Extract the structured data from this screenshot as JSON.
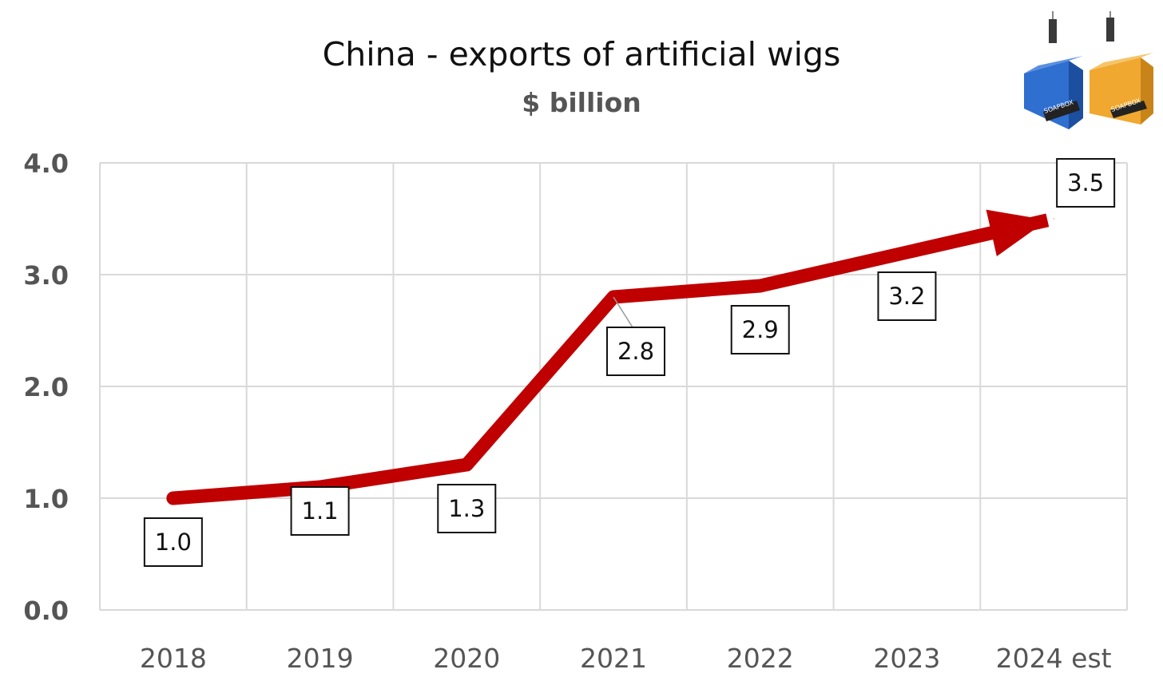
{
  "chart_data": {
    "type": "line",
    "title": "China - exports of artificial wigs",
    "subtitle": "$ billion",
    "categories": [
      "2018",
      "2019",
      "2020",
      "2021",
      "2022",
      "2023",
      "2024 est"
    ],
    "series": [
      {
        "values": [
          1.0,
          1.1,
          1.3,
          2.8,
          2.9,
          3.2,
          3.5
        ],
        "labels": [
          "1.0",
          "1.1",
          "1.3",
          "2.8",
          "2.9",
          "3.2",
          "3.5"
        ],
        "color": "#c00000",
        "last_segment_arrow": true
      }
    ],
    "ylim": [
      0,
      4
    ],
    "yticks": [
      0,
      1,
      2,
      3,
      4
    ],
    "ytick_labels": [
      "0.0",
      "1.0",
      "2.0",
      "3.0",
      "4.0"
    ],
    "grid": true,
    "legend": "none"
  },
  "logo": {
    "icon": "shipping-containers-logo-icon",
    "text": "SOAPBOX",
    "colors": [
      "#2e6fd0",
      "#f0a830"
    ]
  }
}
